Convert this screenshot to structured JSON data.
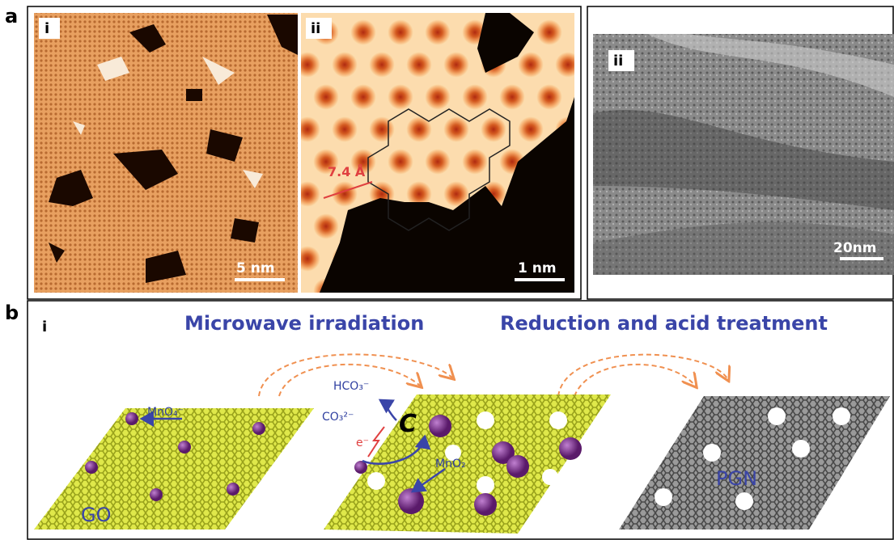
{
  "panel_a": {
    "label": "a",
    "image_i": {
      "label": "i",
      "scale_bar": "5 nm"
    },
    "image_ii": {
      "label": "ii",
      "scale_bar": "1 nm",
      "annotation": "7.4 Å"
    },
    "image_tem": {
      "label": "ii",
      "scale_bar": "20nm"
    }
  },
  "panel_b": {
    "label": "b",
    "sub_label": "i",
    "step_1": "Microwave irradiation",
    "step_2": "Reduction and acid treatment",
    "labels": {
      "hco3": "HCO₃⁻",
      "co3": "CO₃²⁻",
      "carbon": "C",
      "electron": "e⁻",
      "mno4": "MnO₄⁻",
      "mno2": "MnO₂",
      "go": "GO",
      "pgn": "PGN"
    }
  }
}
